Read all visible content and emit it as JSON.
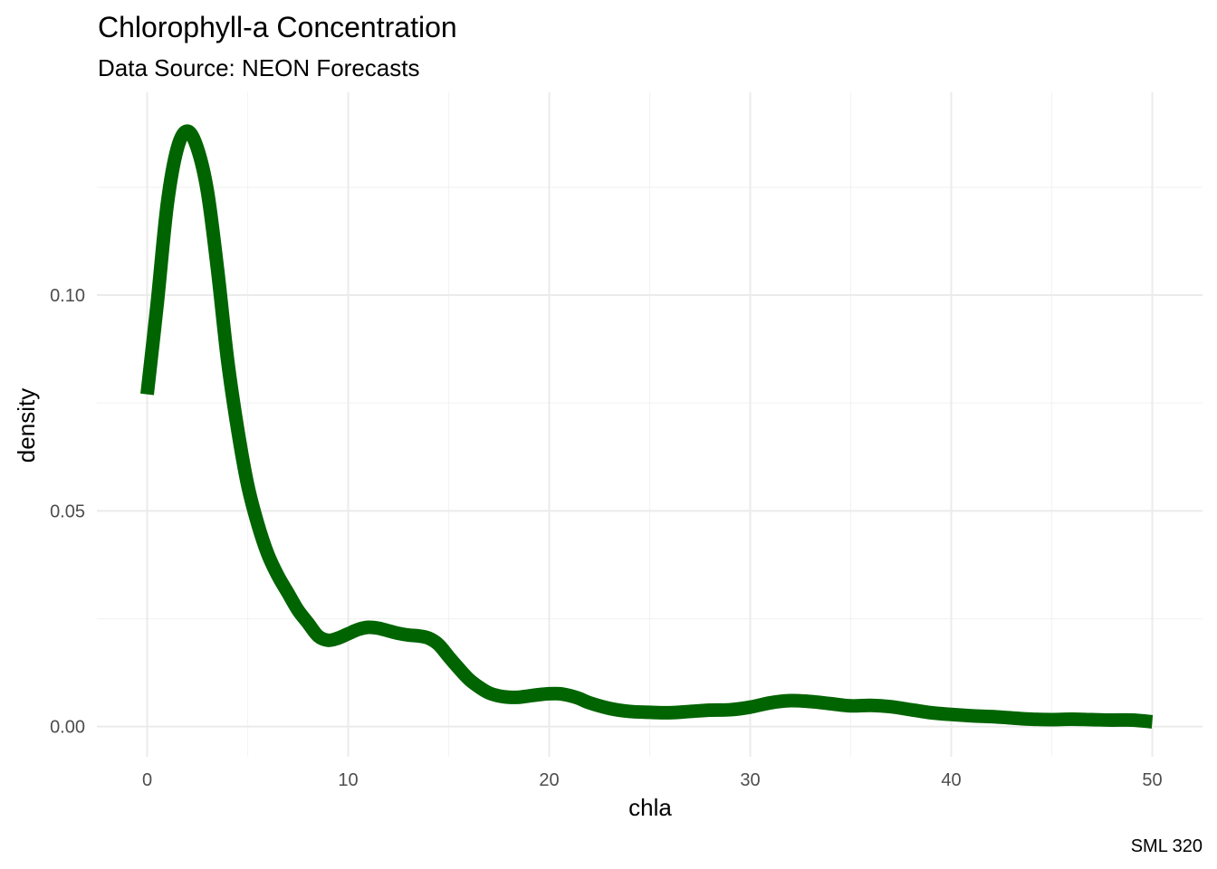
{
  "chart_data": {
    "type": "line",
    "title": "Chlorophyll-a Concentration",
    "subtitle": "Data Source: NEON Forecasts",
    "xlabel": "chla",
    "ylabel": "density",
    "caption": "SML 320",
    "xlim": [
      -2.5,
      52.5
    ],
    "ylim": [
      -0.007,
      0.147
    ],
    "x_ticks": [
      0,
      10,
      20,
      30,
      40,
      50
    ],
    "x_tick_labels": [
      "0",
      "10",
      "20",
      "30",
      "40",
      "50"
    ],
    "y_ticks": [
      0,
      0.05,
      0.1
    ],
    "y_tick_labels": [
      "0.00",
      "0.05",
      "0.10"
    ],
    "grid": true,
    "line_color": "#006400",
    "series": [
      {
        "x": [
          0,
          0.5,
          1,
          1.5,
          2,
          2.5,
          3,
          3.5,
          4,
          4.5,
          5,
          5.5,
          6,
          6.5,
          7,
          7.5,
          8,
          8.5,
          9,
          9.5,
          10,
          10.5,
          11,
          11.5,
          12,
          12.5,
          13,
          13.5,
          14,
          14.5,
          15,
          15.5,
          16,
          16.5,
          17,
          17.5,
          18,
          18.5,
          19,
          19.5,
          20,
          20.5,
          21,
          21.5,
          22,
          23,
          24,
          25,
          26,
          27,
          28,
          29,
          30,
          31,
          32,
          33,
          34,
          35,
          36,
          37,
          38,
          39,
          40,
          41,
          42,
          43,
          44,
          45,
          46,
          47,
          48,
          49,
          50
        ],
        "y": [
          0.077,
          0.098,
          0.121,
          0.134,
          0.138,
          0.134,
          0.124,
          0.106,
          0.085,
          0.069,
          0.056,
          0.047,
          0.04,
          0.035,
          0.031,
          0.027,
          0.024,
          0.021,
          0.02,
          0.0205,
          0.0215,
          0.0225,
          0.023,
          0.0228,
          0.0222,
          0.0216,
          0.0212,
          0.021,
          0.0205,
          0.019,
          0.0162,
          0.0135,
          0.011,
          0.0092,
          0.0078,
          0.0071,
          0.0068,
          0.0068,
          0.0071,
          0.0074,
          0.0076,
          0.0076,
          0.0072,
          0.0065,
          0.0055,
          0.0042,
          0.0035,
          0.0033,
          0.0032,
          0.0035,
          0.0038,
          0.0039,
          0.0045,
          0.0055,
          0.006,
          0.0058,
          0.0053,
          0.0048,
          0.0049,
          0.0046,
          0.0039,
          0.0032,
          0.0028,
          0.0025,
          0.0023,
          0.002,
          0.0017,
          0.0016,
          0.0017,
          0.0016,
          0.0015,
          0.0015,
          0.0011
        ]
      }
    ]
  }
}
